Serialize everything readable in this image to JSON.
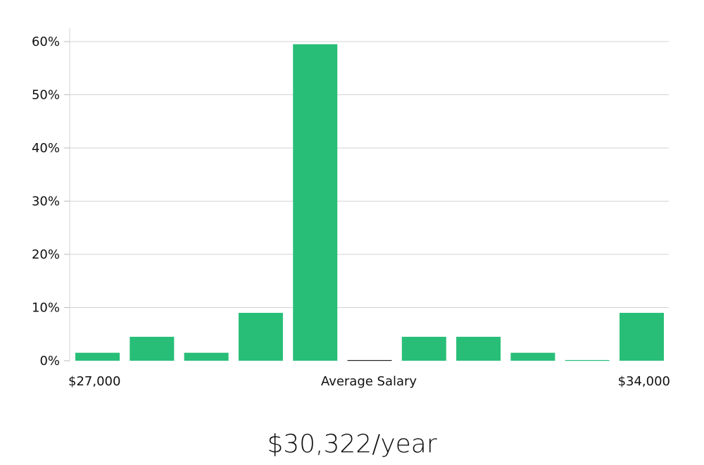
{
  "chart_data": {
    "type": "bar",
    "bins": 11,
    "values": [
      1.5,
      4.5,
      1.5,
      9,
      59.5,
      0,
      4.5,
      4.5,
      1.5,
      0,
      9
    ],
    "ylim": [
      0,
      62.5
    ],
    "y_ticks": [
      0,
      10,
      20,
      30,
      40,
      50,
      60
    ],
    "y_tick_labels": [
      "0%",
      "10%",
      "20%",
      "30%",
      "40%",
      "50%",
      "60%"
    ],
    "x_label_left": "$27,000",
    "x_label_center": "Average Salary",
    "x_label_right": "$34,000",
    "grid": true,
    "bar_color": "#28be78",
    "zero_bar_color": "#222222",
    "grid_color": "#d3d3d3"
  },
  "headline": "$30,322/year"
}
